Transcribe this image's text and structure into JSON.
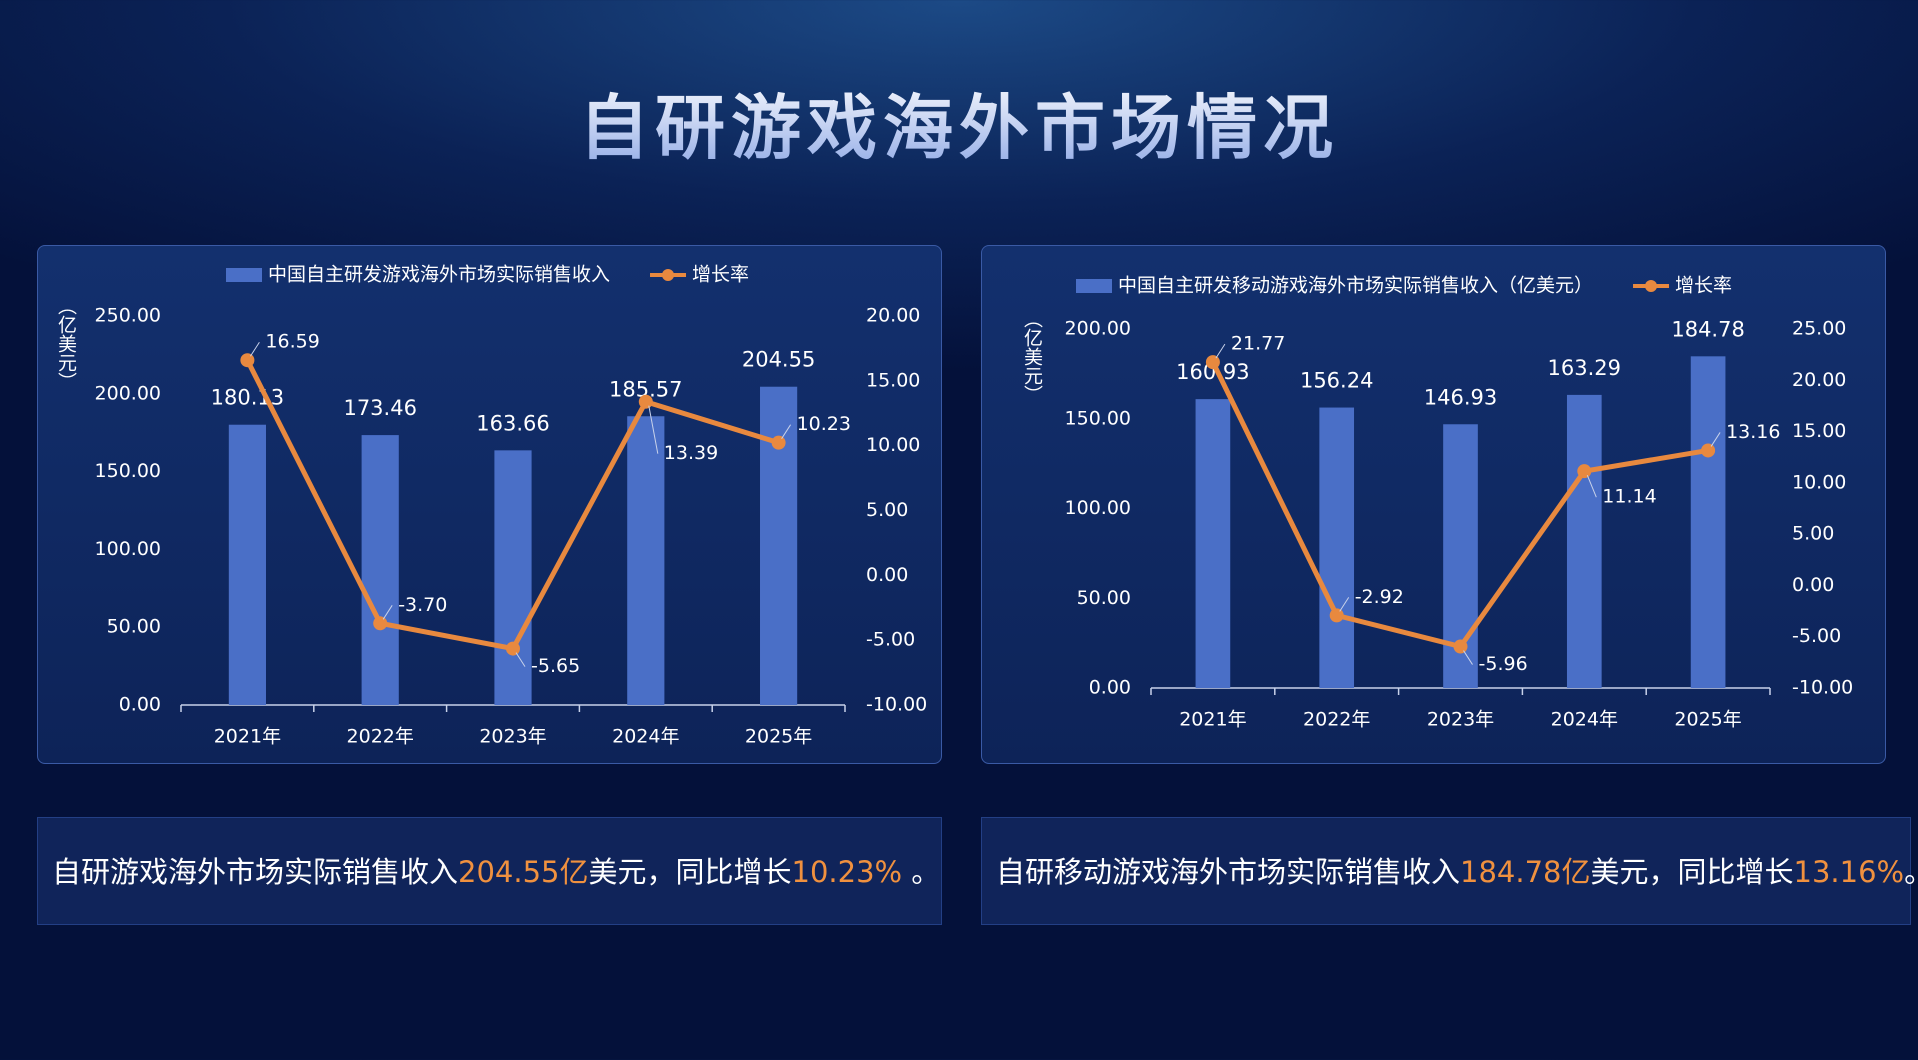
{
  "title": "自研游戏海外市场情况",
  "chart_data": [
    {
      "type": "combo",
      "ylabel": "（亿美元）",
      "categories": [
        "2021年",
        "2022年",
        "2023年",
        "2024年",
        "2025年"
      ],
      "series": [
        {
          "name": "中国自主研发游戏海外市场实际销售收入",
          "color": "#4a6fc7",
          "type": "bar",
          "values": [
            180.13,
            173.46,
            163.66,
            185.57,
            204.55
          ],
          "value_labels": [
            "180.13",
            "173.46",
            "163.66",
            "185.57",
            "204.55"
          ]
        },
        {
          "name": "增长率",
          "color": "#e8893f",
          "type": "line",
          "axis": "y2",
          "values": [
            16.59,
            -3.7,
            -5.65,
            13.39,
            10.23
          ],
          "value_labels": [
            "16.59",
            "-3.70",
            "-5.65",
            "13.39",
            "10.23"
          ]
        }
      ],
      "ylim": [
        0,
        250
      ],
      "yticks": [
        {
          "value": 0,
          "label": "0.00"
        },
        {
          "value": 50,
          "label": "50.00"
        },
        {
          "value": 100,
          "label": "100.00"
        },
        {
          "value": 150,
          "label": "150.00"
        },
        {
          "value": 200,
          "label": "200.00"
        },
        {
          "value": 250,
          "label": "250.00"
        }
      ],
      "y2lim": [
        -10,
        20
      ],
      "y2ticks": [
        {
          "value": -10,
          "label": "-10.00"
        },
        {
          "value": -5,
          "label": "-5.00"
        },
        {
          "value": 0,
          "label": "0.00"
        },
        {
          "value": 5,
          "label": "5.00"
        },
        {
          "value": 10,
          "label": "10.00"
        },
        {
          "value": 15,
          "label": "15.00"
        },
        {
          "value": 20,
          "label": "20.00"
        }
      ]
    },
    {
      "type": "combo",
      "ylabel": "（亿美元）",
      "categories": [
        "2021年",
        "2022年",
        "2023年",
        "2024年",
        "2025年"
      ],
      "series": [
        {
          "name": "中国自主研发移动游戏海外市场实际销售收入（亿美元）",
          "color": "#4a6fc7",
          "type": "bar",
          "values": [
            160.93,
            156.24,
            146.93,
            163.29,
            184.78
          ],
          "value_labels": [
            "160.93",
            "156.24",
            "146.93",
            "163.29",
            "184.78"
          ]
        },
        {
          "name": "增长率",
          "color": "#e8893f",
          "type": "line",
          "axis": "y2",
          "values": [
            21.77,
            -2.92,
            -5.96,
            11.14,
            13.16
          ],
          "value_labels": [
            "21.77",
            "-2.92",
            "-5.96",
            "11.14",
            "13.16"
          ]
        }
      ],
      "ylim": [
        0,
        200
      ],
      "yticks": [
        {
          "value": 0,
          "label": "0.00"
        },
        {
          "value": 50,
          "label": "50.00"
        },
        {
          "value": 100,
          "label": "100.00"
        },
        {
          "value": 150,
          "label": "150.00"
        },
        {
          "value": 200,
          "label": "200.00"
        }
      ],
      "y2lim": [
        -10,
        25
      ],
      "y2ticks": [
        {
          "value": -10,
          "label": "-10.00"
        },
        {
          "value": -5,
          "label": "-5.00"
        },
        {
          "value": 0,
          "label": "0.00"
        },
        {
          "value": 5,
          "label": "5.00"
        },
        {
          "value": 10,
          "label": "10.00"
        },
        {
          "value": 15,
          "label": "15.00"
        },
        {
          "value": 20,
          "label": "20.00"
        },
        {
          "value": 25,
          "label": "25.00"
        }
      ]
    }
  ],
  "summaries": [
    [
      "自研游戏海外市场实际销售收入",
      "204.55亿",
      "美元，同比增长",
      "10.23%",
      " 。"
    ],
    [
      "自研移动游戏海外市场实际销售收入",
      "184.78亿",
      "美元，同比增长",
      "13.16%",
      "。"
    ]
  ]
}
